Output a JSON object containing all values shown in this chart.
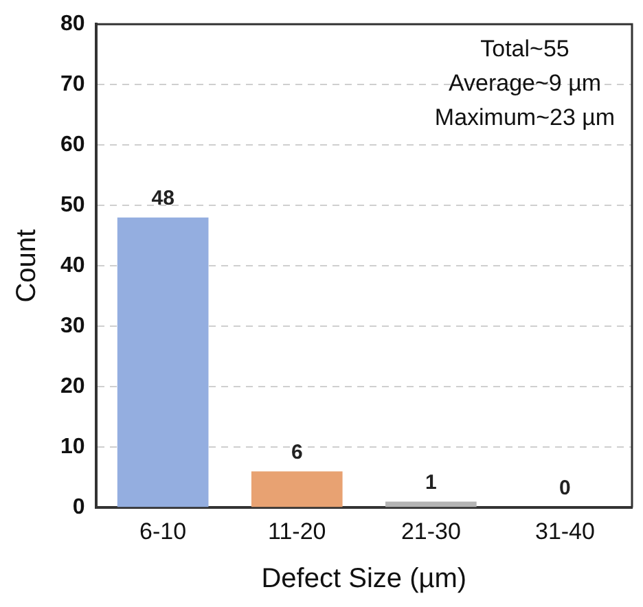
{
  "chart_data": {
    "type": "bar",
    "categories": [
      "6-10",
      "11-20",
      "21-30",
      "31-40"
    ],
    "values": [
      48,
      6,
      1,
      0
    ],
    "colors": [
      "#94aee0",
      "#e8a272",
      "#b4b4b4",
      "#b4b4b4"
    ],
    "xlabel": "Defect Size (µm)",
    "ylabel": "Count",
    "ylim": [
      0,
      80
    ],
    "yticks": [
      0,
      10,
      20,
      30,
      40,
      50,
      60,
      70,
      80
    ],
    "grid": "y",
    "data_labels": true,
    "legend": false,
    "annotations": [
      "Total~55",
      "Average~9 µm",
      "Maximum~23 µm"
    ]
  }
}
